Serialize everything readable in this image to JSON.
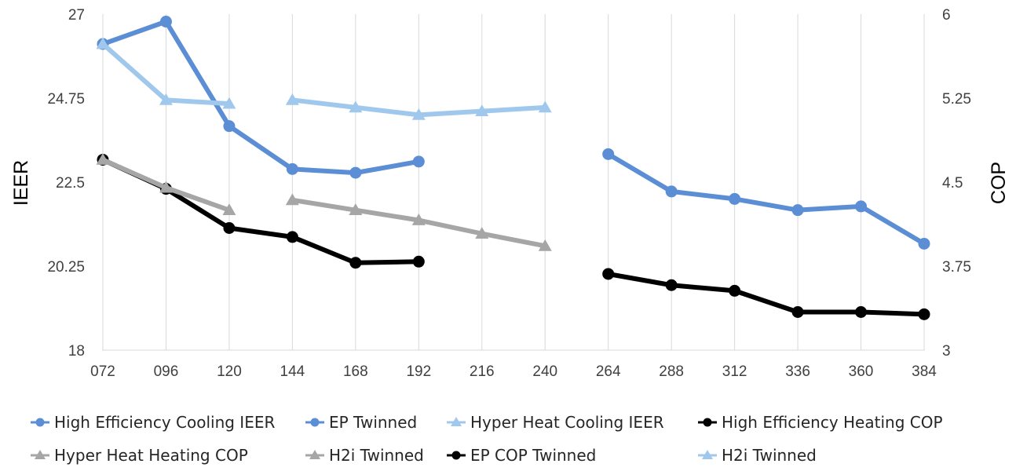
{
  "chart_data": {
    "type": "line",
    "categories": [
      "072",
      "096",
      "120",
      "144",
      "168",
      "192",
      "216",
      "240",
      "264",
      "288",
      "312",
      "336",
      "360",
      "384"
    ],
    "y_left": {
      "label": "IEER",
      "ylim": [
        18,
        27
      ],
      "ticks": [
        "18",
        "20.25",
        "22.5",
        "24.75",
        "27"
      ],
      "tick_values": [
        18,
        20.25,
        22.5,
        24.75,
        27
      ]
    },
    "y_right": {
      "label": "COP",
      "ylim": [
        3,
        6
      ],
      "ticks": [
        "3",
        "3.75",
        "4.5",
        "5.25",
        "6"
      ],
      "tick_values": [
        3,
        3.75,
        4.5,
        5.25,
        6
      ]
    },
    "grid": "vertical",
    "legend_position": "bottom",
    "series": [
      {
        "name": "High Efficiency Cooling IEER",
        "axis": "left",
        "color": "#5b8ed4",
        "marker": "circle",
        "values": [
          26.2,
          26.8,
          24.0,
          22.85,
          22.75,
          23.05,
          null,
          null,
          null,
          null,
          null,
          null,
          null,
          null
        ]
      },
      {
        "name": "EP Twinned",
        "axis": "left",
        "color": "#5b8ed4",
        "marker": "circle",
        "values": [
          null,
          null,
          null,
          null,
          null,
          null,
          null,
          null,
          23.25,
          22.25,
          22.05,
          21.75,
          21.85,
          20.85
        ]
      },
      {
        "name": "Hyper Heat Cooling IEER",
        "axis": "left",
        "color": "#a0c8ec",
        "marker": "triangle",
        "values": [
          26.2,
          24.7,
          24.6,
          null,
          null,
          null,
          null,
          null,
          null,
          null,
          null,
          null,
          null,
          null
        ]
      },
      {
        "name": "High Efficiency Heating COP",
        "axis": "right",
        "color": "#000000",
        "marker": "circle",
        "values": [
          4.7,
          4.44,
          4.09,
          4.01,
          3.78,
          3.79,
          null,
          null,
          null,
          null,
          null,
          null,
          null,
          null
        ]
      },
      {
        "name": "Hyper Heat Heating COP",
        "axis": "right",
        "color": "#a6a6a6",
        "marker": "triangle",
        "values": [
          4.7,
          4.45,
          4.25,
          null,
          null,
          null,
          null,
          null,
          null,
          null,
          null,
          null,
          null,
          null
        ]
      },
      {
        "name": "H2i Twinned",
        "axis": "right",
        "color": "#a6a6a6",
        "marker": "triangle",
        "values": [
          null,
          null,
          null,
          4.34,
          4.25,
          4.16,
          4.04,
          3.93,
          null,
          null,
          null,
          null,
          null,
          null
        ]
      },
      {
        "name": "EP COP Twinned",
        "axis": "right",
        "color": "#000000",
        "marker": "circle",
        "values": [
          null,
          null,
          null,
          null,
          null,
          null,
          null,
          null,
          3.68,
          3.58,
          3.53,
          3.34,
          3.34,
          3.32
        ]
      },
      {
        "name": "H2i Twinned",
        "axis": "left",
        "color": "#a0c8ec",
        "marker": "triangle",
        "values": [
          null,
          null,
          null,
          24.7,
          24.5,
          24.3,
          24.4,
          24.5,
          null,
          null,
          null,
          null,
          null,
          null
        ]
      }
    ]
  }
}
